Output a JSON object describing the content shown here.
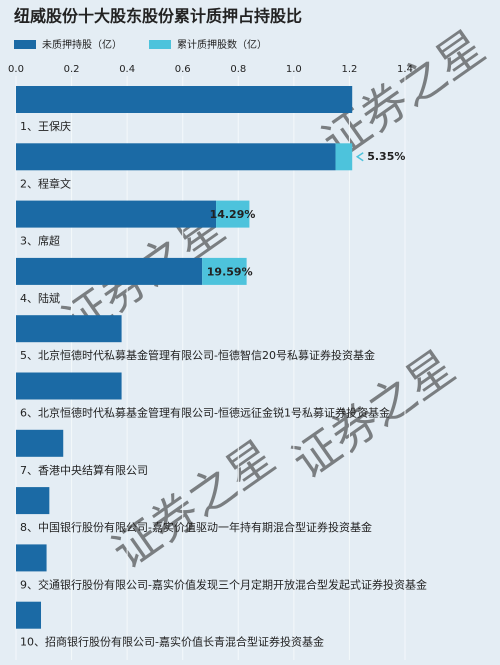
{
  "chart_data": {
    "type": "stacked-barh",
    "title": "纽威股份十大股东股份累计质押占持股比",
    "watermark": "证券之星",
    "categories": [
      "1、王保庆",
      "2、程章文",
      "3、席超",
      "4、陆斌",
      "5、北京恒德时代私募基金管理有限公司-恒德智信20号私募证券投资基金",
      "6、北京恒德时代私募基金管理有限公司-恒德远征金锐1号私募证券投资基金",
      "7、香港中央结算有限公司",
      "8、中国银行股份有限公司-嘉实价值驱动一年持有期混合型证券投资基金",
      "9、交通银行股份有限公司-嘉实价值发现三个月定期开放混合型发起式证券投资基金",
      "10、招商银行股份有限公司-嘉实价值长青混合型证券投资基金"
    ],
    "series": [
      {
        "name": "未质押持股（亿）",
        "color": "#1b6aa5",
        "values": [
          1.21,
          1.15,
          0.72,
          0.67,
          0.38,
          0.38,
          0.17,
          0.12,
          0.11,
          0.09
        ]
      },
      {
        "name": "累计质押股数（亿）",
        "color": "#4dc3dc",
        "values": [
          null,
          0.06,
          0.12,
          0.16,
          null,
          null,
          null,
          null,
          null,
          null
        ]
      }
    ],
    "pledge_ratio": {
      "values": [
        null,
        5.35,
        14.29,
        19.59,
        null,
        null,
        null,
        null,
        null,
        null
      ],
      "value_labels": [
        null,
        "5.35%",
        "14.29%",
        "19.59%",
        null,
        null,
        null,
        null,
        null,
        null
      ]
    },
    "xlim": [
      0,
      1.4
    ],
    "xticks": [
      {
        "value": 0,
        "label": "0.0"
      },
      0.2,
      0.4,
      0.6,
      0.8,
      {
        "value": 1,
        "label": "1.0"
      },
      1.2,
      1.4
    ],
    "grid": true
  }
}
